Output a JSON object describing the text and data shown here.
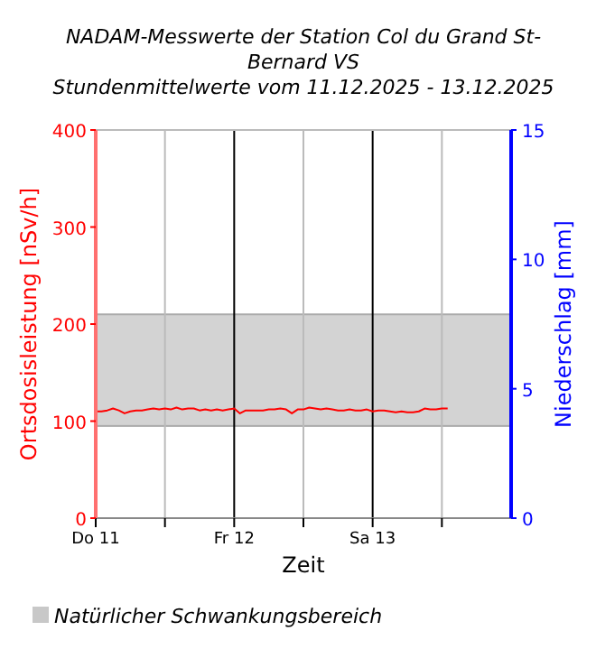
{
  "chart_data": {
    "type": "line",
    "title": "NADAM-Messwerte der Station Col du Grand St-Bernard VS",
    "subtitle": "Stundenmittelwerte vom 11.12.2025 - 13.12.2025",
    "xlabel": "Zeit",
    "ylabel": "Ortsdosisleistung [nSv/h]",
    "y2label": "Niederschlag [mm]",
    "x": [
      "2025-12-11T00:00",
      "2025-12-11T01:00",
      "2025-12-11T02:00",
      "2025-12-11T03:00",
      "2025-12-11T04:00",
      "2025-12-11T05:00",
      "2025-12-11T06:00",
      "2025-12-11T07:00",
      "2025-12-11T08:00",
      "2025-12-11T09:00",
      "2025-12-11T10:00",
      "2025-12-11T11:00",
      "2025-12-11T12:00",
      "2025-12-11T13:00",
      "2025-12-11T14:00",
      "2025-12-11T15:00",
      "2025-12-11T16:00",
      "2025-12-11T17:00",
      "2025-12-11T18:00",
      "2025-12-11T19:00",
      "2025-12-11T20:00",
      "2025-12-11T21:00",
      "2025-12-11T22:00",
      "2025-12-11T23:00",
      "2025-12-12T00:00",
      "2025-12-12T01:00",
      "2025-12-12T02:00",
      "2025-12-12T03:00",
      "2025-12-12T04:00",
      "2025-12-12T05:00",
      "2025-12-12T06:00",
      "2025-12-12T07:00",
      "2025-12-12T08:00",
      "2025-12-12T09:00",
      "2025-12-12T10:00",
      "2025-12-12T11:00",
      "2025-12-12T12:00",
      "2025-12-12T13:00",
      "2025-12-12T14:00",
      "2025-12-12T15:00",
      "2025-12-12T16:00",
      "2025-12-12T17:00",
      "2025-12-12T18:00",
      "2025-12-12T19:00",
      "2025-12-12T20:00",
      "2025-12-12T21:00",
      "2025-12-12T22:00",
      "2025-12-12T23:00",
      "2025-12-13T00:00",
      "2025-12-13T01:00",
      "2025-12-13T02:00",
      "2025-12-13T03:00",
      "2025-12-13T04:00",
      "2025-12-13T05:00",
      "2025-12-13T06:00",
      "2025-12-13T07:00",
      "2025-12-13T08:00",
      "2025-12-13T09:00",
      "2025-12-13T10:00",
      "2025-12-13T11:00",
      "2025-12-13T12:00",
      "2025-12-13T13:00"
    ],
    "series": [
      {
        "color": "#ff0000",
        "values": [
          110,
          110,
          111,
          113,
          111,
          108,
          110,
          111,
          111,
          112,
          113,
          112,
          113,
          112,
          114,
          112,
          113,
          113,
          111,
          112,
          111,
          112,
          111,
          112,
          113,
          108,
          111,
          111,
          111,
          111,
          112,
          112,
          113,
          112,
          108,
          112,
          112,
          114,
          113,
          112,
          113,
          112,
          111,
          111,
          112,
          111,
          111,
          112,
          110,
          111,
          111,
          110,
          109,
          110,
          109,
          109,
          110,
          113,
          112,
          112,
          113,
          113
        ]
      }
    ],
    "xlim": [
      "2025-12-11T00:00",
      "2025-12-14T00:00"
    ],
    "xticks": [
      {
        "value": "2025-12-11T00:00",
        "label": "Do 11"
      },
      {
        "value": "2025-12-11T12:00",
        "label": null
      },
      {
        "value": "2025-12-12T00:00",
        "label": "Fr 12"
      },
      {
        "value": "2025-12-12T12:00",
        "label": null
      },
      {
        "value": "2025-12-13T00:00",
        "label": "Sa 13"
      },
      {
        "value": "2025-12-13T12:00",
        "label": null
      }
    ],
    "ylim": [
      0,
      400
    ],
    "yticks": [
      0,
      100,
      200,
      300,
      400
    ],
    "y2lim": [
      0,
      15
    ],
    "y2ticks": [
      0,
      5,
      10,
      15
    ],
    "bands": [
      {
        "axis": "y",
        "from": 95,
        "to": 210,
        "label": "Natürlicher Schwankungsbereich",
        "color": "#d3d3d3"
      }
    ],
    "grid": "x",
    "legend": "bottom left",
    "marker": "none",
    "line_style": "solid"
  }
}
